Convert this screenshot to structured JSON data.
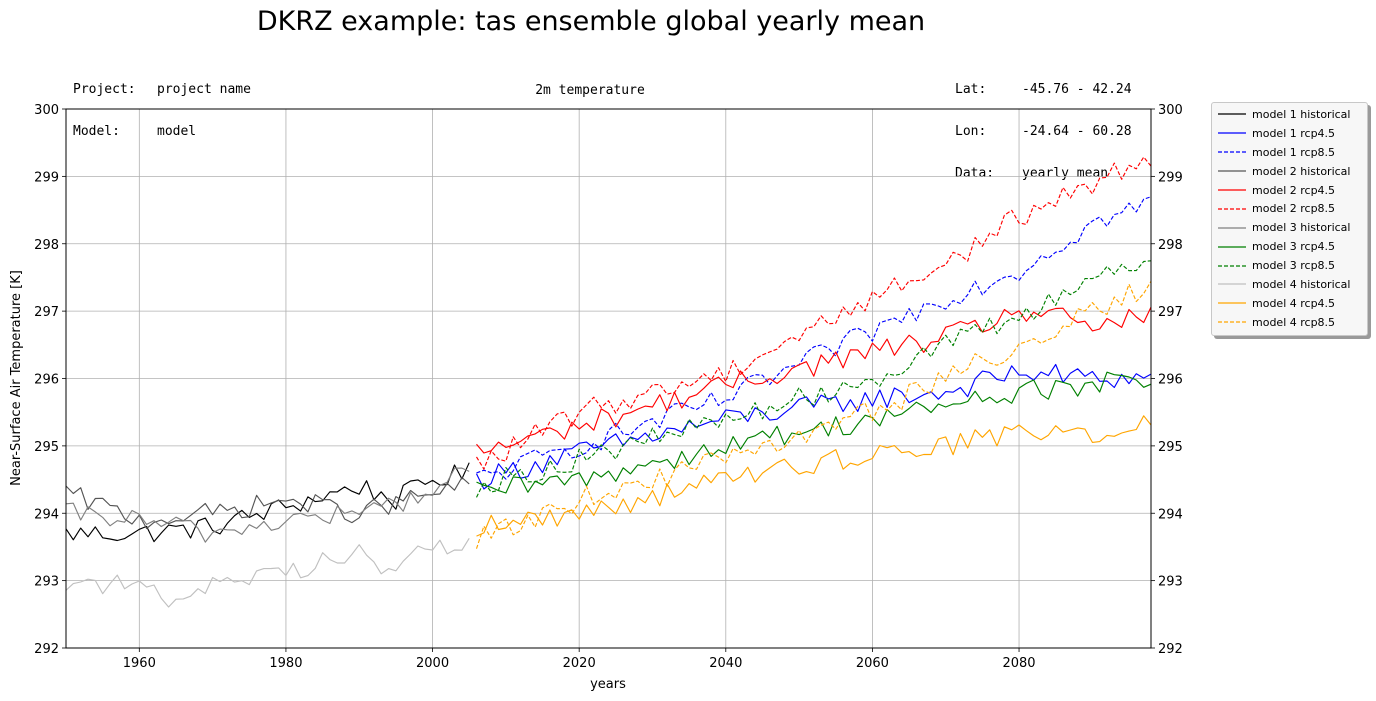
{
  "title": "DKRZ example: tas ensemble global yearly mean",
  "header_left": [
    {
      "key": "Project:",
      "value": "project name"
    },
    {
      "key": "Model:",
      "value": "model"
    }
  ],
  "header_right": [
    {
      "key": "Lat:",
      "value": "-45.76 - 42.24"
    },
    {
      "key": "Lon:",
      "value": "-24.64 - 60.28"
    },
    {
      "key": "Data:",
      "value": "yearly mean"
    }
  ],
  "subtitle": "2m temperature",
  "chart_data": {
    "type": "line",
    "xlabel": "years",
    "ylabel": "Near-Surface Air Temperature [K]",
    "xlim": [
      1950,
      2098
    ],
    "ylim": [
      292,
      300
    ],
    "xticks": [
      1960,
      1980,
      2000,
      2020,
      2040,
      2060,
      2080
    ],
    "yticks": [
      292,
      293,
      294,
      295,
      296,
      297,
      298,
      299,
      300
    ],
    "grid": true,
    "legend_position": "outside-right-top",
    "historical_years": [
      1950,
      2005
    ],
    "scenario_years": [
      2006,
      2098
    ],
    "series": [
      {
        "name": "model 1 historical",
        "color": "#000000",
        "dash": "solid",
        "start": 1950,
        "anchors": [
          [
            1950,
            293.7
          ],
          [
            1960,
            293.7
          ],
          [
            1970,
            293.8
          ],
          [
            1980,
            294.1
          ],
          [
            1990,
            294.4
          ],
          [
            1995,
            294.2
          ],
          [
            2000,
            294.5
          ],
          [
            2005,
            294.6
          ]
        ]
      },
      {
        "name": "model 1 rcp4.5",
        "color": "#0000ff",
        "dash": "solid",
        "start": 2006,
        "anchors": [
          [
            2006,
            294.5
          ],
          [
            2020,
            294.9
          ],
          [
            2040,
            295.4
          ],
          [
            2060,
            295.7
          ],
          [
            2070,
            295.8
          ],
          [
            2080,
            296.1
          ],
          [
            2090,
            296.0
          ],
          [
            2098,
            296.0
          ]
        ]
      },
      {
        "name": "model 1 rcp8.5",
        "color": "#0000ff",
        "dash": "dashed",
        "start": 2006,
        "anchors": [
          [
            2006,
            294.5
          ],
          [
            2020,
            295.0
          ],
          [
            2040,
            295.7
          ],
          [
            2060,
            296.7
          ],
          [
            2070,
            297.2
          ],
          [
            2080,
            297.6
          ],
          [
            2090,
            298.3
          ],
          [
            2098,
            298.6
          ]
        ]
      },
      {
        "name": "model 2 historical",
        "color": "#555555",
        "dash": "solid",
        "start": 1950,
        "anchors": [
          [
            1950,
            294.3
          ],
          [
            1960,
            293.9
          ],
          [
            1970,
            294.0
          ],
          [
            1980,
            294.2
          ],
          [
            1990,
            294.0
          ],
          [
            2000,
            294.3
          ],
          [
            2005,
            294.4
          ]
        ]
      },
      {
        "name": "model 2 rcp4.5",
        "color": "#ff0000",
        "dash": "solid",
        "start": 2006,
        "anchors": [
          [
            2006,
            294.9
          ],
          [
            2020,
            295.3
          ],
          [
            2040,
            295.9
          ],
          [
            2060,
            296.4
          ],
          [
            2070,
            296.6
          ],
          [
            2080,
            297.0
          ],
          [
            2090,
            296.8
          ],
          [
            2098,
            296.9
          ]
        ]
      },
      {
        "name": "model 2 rcp8.5",
        "color": "#ff0000",
        "dash": "dashed",
        "start": 2006,
        "anchors": [
          [
            2006,
            294.7
          ],
          [
            2020,
            295.5
          ],
          [
            2040,
            296.1
          ],
          [
            2060,
            297.2
          ],
          [
            2070,
            297.7
          ],
          [
            2080,
            298.4
          ],
          [
            2090,
            298.9
          ],
          [
            2098,
            299.3
          ]
        ]
      },
      {
        "name": "model 3 historical",
        "color": "#808080",
        "dash": "solid",
        "start": 1950,
        "anchors": [
          [
            1950,
            294.0
          ],
          [
            1960,
            293.9
          ],
          [
            1970,
            293.7
          ],
          [
            1980,
            293.9
          ],
          [
            1990,
            294.0
          ],
          [
            2000,
            294.3
          ],
          [
            2005,
            294.7
          ]
        ]
      },
      {
        "name": "model 3 rcp4.5",
        "color": "#008000",
        "dash": "solid",
        "start": 2006,
        "anchors": [
          [
            2006,
            294.3
          ],
          [
            2020,
            294.5
          ],
          [
            2040,
            295.0
          ],
          [
            2060,
            295.4
          ],
          [
            2070,
            295.6
          ],
          [
            2080,
            295.8
          ],
          [
            2090,
            295.9
          ],
          [
            2098,
            296.0
          ]
        ]
      },
      {
        "name": "model 3 rcp8.5",
        "color": "#008000",
        "dash": "dashed",
        "start": 2006,
        "anchors": [
          [
            2006,
            294.4
          ],
          [
            2020,
            294.8
          ],
          [
            2040,
            295.4
          ],
          [
            2060,
            296.0
          ],
          [
            2070,
            296.5
          ],
          [
            2080,
            296.9
          ],
          [
            2090,
            297.5
          ],
          [
            2098,
            297.8
          ]
        ]
      },
      {
        "name": "model 4 historical",
        "color": "#c0c0c0",
        "dash": "solid",
        "start": 1950,
        "anchors": [
          [
            1950,
            293.0
          ],
          [
            1960,
            292.9
          ],
          [
            1965,
            292.7
          ],
          [
            1970,
            293.0
          ],
          [
            1980,
            293.1
          ],
          [
            1990,
            293.5
          ],
          [
            1993,
            293.1
          ],
          [
            2000,
            293.5
          ],
          [
            2005,
            293.5
          ]
        ]
      },
      {
        "name": "model 4 rcp4.5",
        "color": "#ffa500",
        "dash": "solid",
        "start": 2006,
        "anchors": [
          [
            2006,
            293.8
          ],
          [
            2020,
            294.0
          ],
          [
            2040,
            294.5
          ],
          [
            2060,
            294.9
          ],
          [
            2070,
            295.0
          ],
          [
            2080,
            295.2
          ],
          [
            2090,
            295.2
          ],
          [
            2098,
            295.3
          ]
        ]
      },
      {
        "name": "model 4 rcp8.5",
        "color": "#ffa500",
        "dash": "dashed",
        "start": 2006,
        "anchors": [
          [
            2006,
            293.6
          ],
          [
            2020,
            294.2
          ],
          [
            2040,
            294.8
          ],
          [
            2060,
            295.5
          ],
          [
            2070,
            296.0
          ],
          [
            2080,
            296.5
          ],
          [
            2090,
            297.0
          ],
          [
            2098,
            297.4
          ]
        ]
      }
    ]
  }
}
